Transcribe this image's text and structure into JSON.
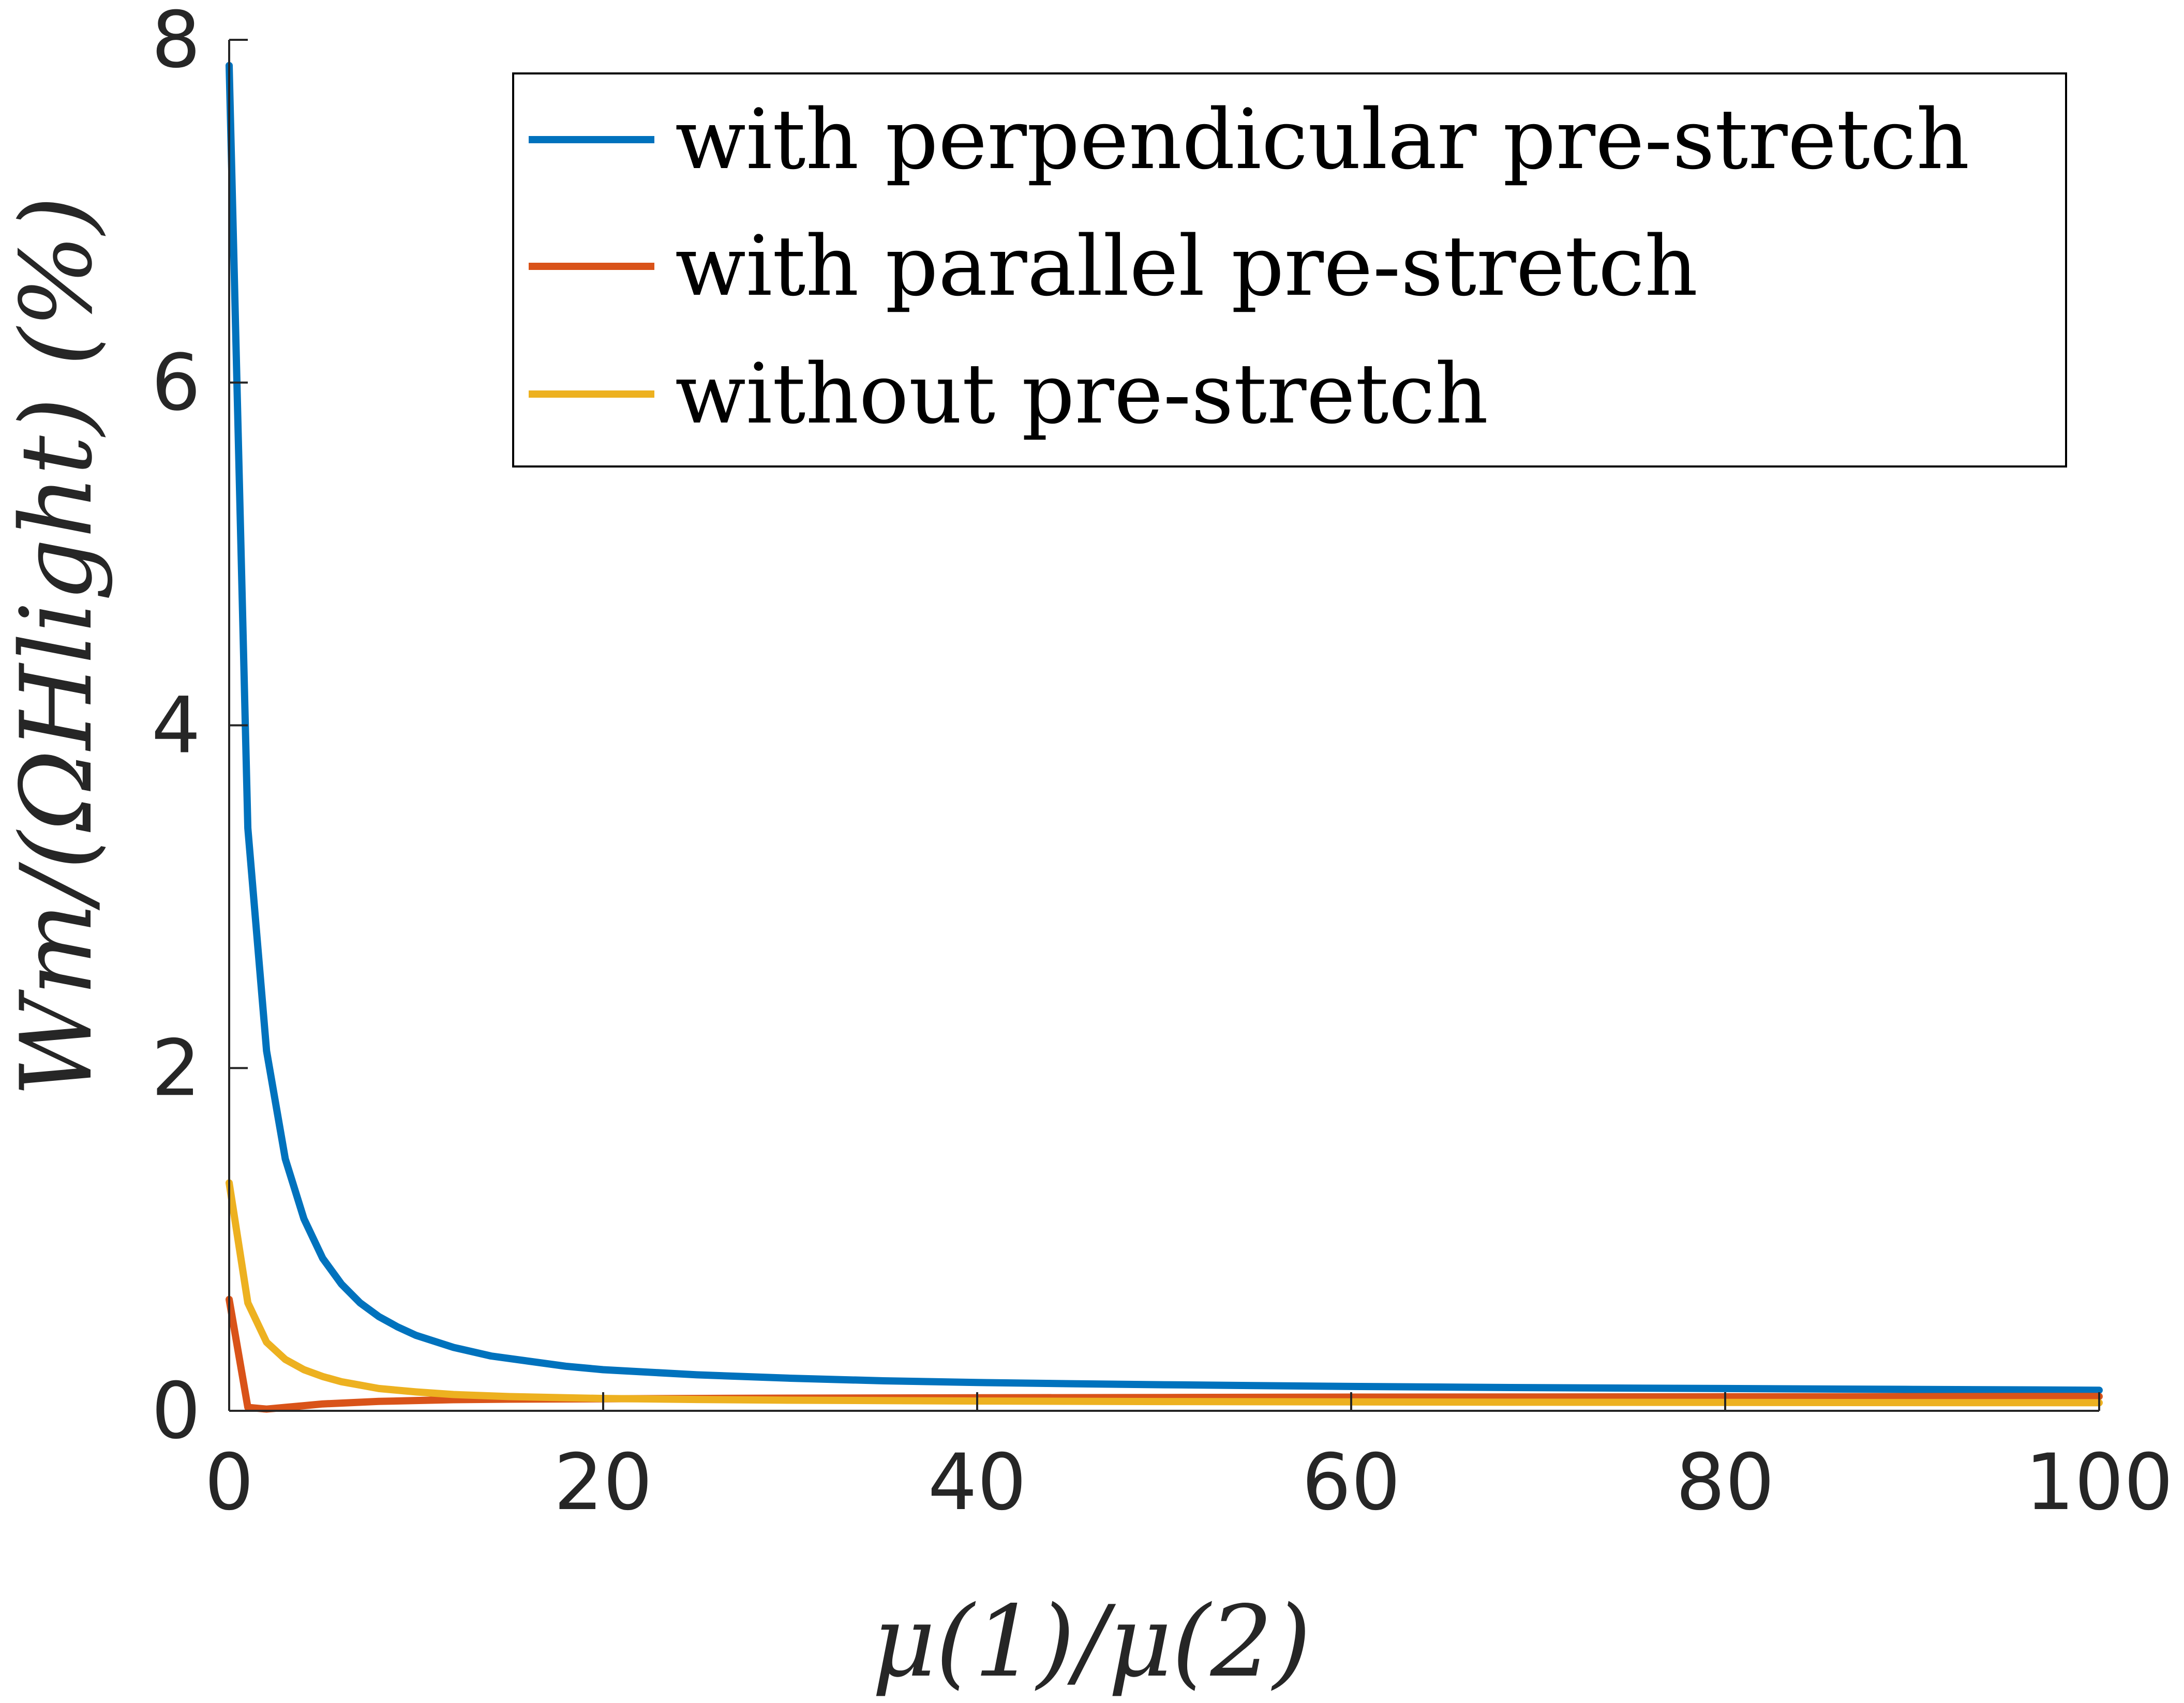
{
  "chart_data": {
    "type": "line",
    "xlabel": "μ(1)/μ(2)",
    "ylabel": "Wm/(ΩHlight) (%)",
    "xlim": [
      0,
      100
    ],
    "ylim": [
      0,
      8
    ],
    "xticks": [
      "0",
      "20",
      "40",
      "60",
      "80",
      "100"
    ],
    "yticks": [
      "0",
      "2",
      "4",
      "6",
      "8"
    ],
    "grid": false,
    "legend_position": "top-right",
    "series": [
      {
        "name": "with perpendicular pre-stretch",
        "color": "#0072BD",
        "x": [
          0,
          1,
          2,
          3,
          4,
          5,
          6,
          7,
          8,
          9,
          10,
          12,
          14,
          16,
          18,
          20,
          25,
          30,
          35,
          40,
          45,
          50,
          60,
          70,
          80,
          90,
          100
        ],
        "y": [
          7.85,
          3.4,
          2.1,
          1.47,
          1.12,
          0.89,
          0.74,
          0.63,
          0.55,
          0.49,
          0.44,
          0.37,
          0.32,
          0.29,
          0.26,
          0.24,
          0.21,
          0.19,
          0.175,
          0.165,
          0.158,
          0.152,
          0.142,
          0.135,
          0.13,
          0.125,
          0.12
        ]
      },
      {
        "name": "with parallel pre-stretch",
        "color": "#D95319",
        "x": [
          0,
          1,
          2,
          3,
          4,
          5,
          6,
          8,
          10,
          12,
          15,
          20,
          25,
          30,
          40,
          50,
          60,
          70,
          80,
          90,
          100
        ],
        "y": [
          0.65,
          0.02,
          0.01,
          0.02,
          0.03,
          0.04,
          0.045,
          0.055,
          0.06,
          0.065,
          0.068,
          0.07,
          0.072,
          0.074,
          0.076,
          0.078,
          0.08,
          0.081,
          0.082,
          0.083,
          0.084
        ]
      },
      {
        "name": "without pre-stretch",
        "color": "#EDB120",
        "x": [
          0,
          1,
          2,
          3,
          4,
          5,
          6,
          7,
          8,
          10,
          12,
          15,
          18,
          20,
          25,
          30,
          40,
          50,
          60,
          70,
          80,
          90,
          100
        ],
        "y": [
          1.33,
          0.63,
          0.4,
          0.3,
          0.24,
          0.2,
          0.17,
          0.15,
          0.13,
          0.11,
          0.095,
          0.083,
          0.076,
          0.072,
          0.066,
          0.062,
          0.057,
          0.054,
          0.052,
          0.05,
          0.049,
          0.048,
          0.047
        ]
      }
    ]
  }
}
